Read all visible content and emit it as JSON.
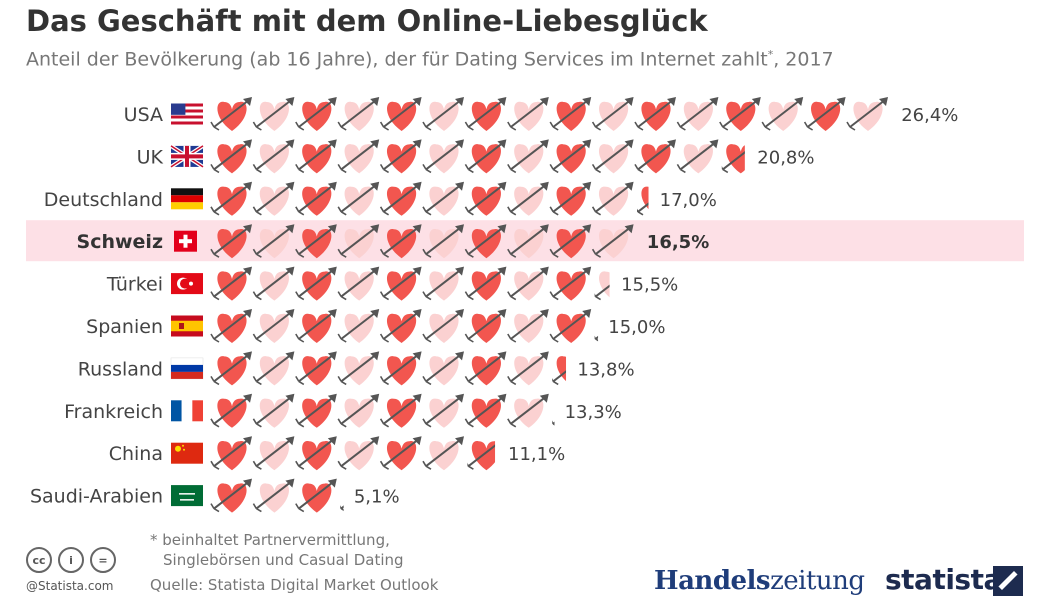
{
  "header": {
    "title": "Das Geschäft mit dem Online-Liebesglück",
    "subtitle": "Anteil der Bevölkerung (ab 16 Jahre), der für Dating Services im Internet zahlt",
    "subtitle_marker": "*",
    "subtitle_year": ", 2017"
  },
  "chart_data": {
    "type": "bar",
    "unit_per_icon": 1.65,
    "categories": [
      "USA",
      "UK",
      "Deutschland",
      "Schweiz",
      "Türkei",
      "Spanien",
      "Russland",
      "Frankreich",
      "China",
      "Saudi-Arabien"
    ],
    "values": [
      26.4,
      20.8,
      17.0,
      16.5,
      15.5,
      15.0,
      13.8,
      13.3,
      11.1,
      5.1
    ],
    "value_labels": [
      "26,4%",
      "20,8%",
      "17,0%",
      "16,5%",
      "15,5%",
      "15,0%",
      "13,8%",
      "13,3%",
      "11,1%",
      "5,1%"
    ],
    "highlight": "Schweiz",
    "flags": [
      "us-flag",
      "uk-flag",
      "germany-flag",
      "switzerland-flag",
      "turkey-flag",
      "spain-flag",
      "russia-flag",
      "france-flag",
      "china-flag",
      "saudi-arabia-flag"
    ],
    "colors": {
      "heart_strong": "#f2564f",
      "heart_light": "#fbd1d1",
      "arrow": "#555555",
      "highlight_band": "#fde0e6",
      "label": "#444444"
    }
  },
  "footer": {
    "footnote_line1": "* beinhaltet Partnervermittlung,",
    "footnote_line2": "Singlebörsen und Casual Dating",
    "source": "Quelle: Statista Digital Market Outlook",
    "credit": "@Statista.com",
    "license_icons": [
      "cc-icon",
      "by-icon",
      "nd-icon"
    ],
    "license_glyphs": [
      "cc",
      "i",
      "="
    ],
    "logo_handelszeitung_a": "Handels",
    "logo_handelszeitung_b": "zeitung",
    "logo_statista": "statista"
  }
}
